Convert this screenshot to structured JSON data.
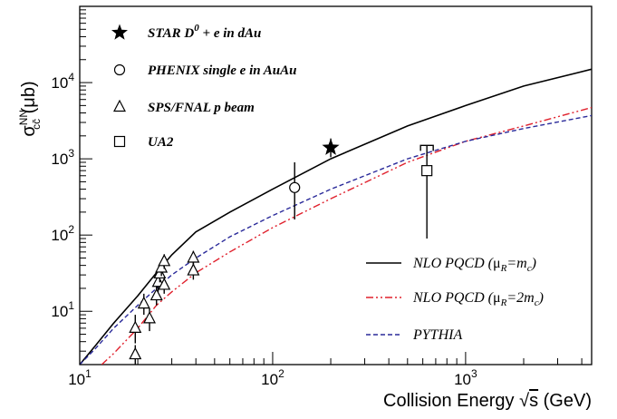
{
  "chart_data": {
    "type": "line",
    "x_scale": "log",
    "y_scale": "log",
    "xlim": [
      10,
      4500
    ],
    "ylim": [
      2,
      100000
    ],
    "xlabel_parts": {
      "before": "Collision Energy ",
      "sqrt_symbol": "√",
      "var": "s",
      "after": " (GeV)"
    },
    "ylabel_parts": {
      "sigma": "σ",
      "sup": "NN",
      "sub": "cc̄",
      "unit": " (μb)"
    },
    "x_ticks": [
      {
        "value": 10,
        "base": "10",
        "exp": "1"
      },
      {
        "value": 100,
        "base": "10",
        "exp": "2"
      },
      {
        "value": 1000,
        "base": "10",
        "exp": "3"
      }
    ],
    "y_ticks": [
      {
        "value": 10,
        "base": "10",
        "exp": "1"
      },
      {
        "value": 100,
        "base": "10",
        "exp": "2"
      },
      {
        "value": 1000,
        "base": "10",
        "exp": "3"
      },
      {
        "value": 10000,
        "base": "10",
        "exp": "4"
      }
    ],
    "grid": false,
    "legend_placement": "top-left and bottom-right",
    "curves": [
      {
        "name": "NLO PQCD (μR=mc)",
        "legend_parts": {
          "pre": "NLO PQCD (",
          "mu": "μ",
          "sub1": "R",
          "eq": "=m",
          "sub2": "c",
          "post": ")"
        },
        "style": "solid",
        "color": "#000000",
        "x": [
          10,
          12,
          15,
          20,
          25,
          30,
          40,
          60,
          100,
          200,
          500,
          1000,
          2000,
          4500
        ],
        "y": [
          2,
          3.5,
          7,
          16,
          32,
          55,
          110,
          200,
          400,
          1000,
          2700,
          5000,
          9000,
          15000
        ]
      },
      {
        "name": "NLO PQCD (μR=2mc)",
        "legend_parts": {
          "pre": "NLO PQCD (",
          "mu": "μ",
          "sub1": "R",
          "eq": "=2m",
          "sub2": "c",
          "post": ")"
        },
        "style": "dashdot",
        "color": "#e0202c",
        "x": [
          13,
          15,
          20,
          25,
          30,
          40,
          60,
          100,
          200,
          500,
          1000,
          2000,
          4500
        ],
        "y": [
          2,
          2.8,
          6,
          12,
          18,
          32,
          60,
          125,
          300,
          900,
          1700,
          2700,
          4700
        ]
      },
      {
        "name": "PYTHIA",
        "legend_parts": {
          "pre": "PYTHIA",
          "mu": "",
          "sub1": "",
          "eq": "",
          "sub2": "",
          "post": ""
        },
        "style": "dashed",
        "color": "#2a2a9a",
        "x": [
          10,
          12,
          15,
          20,
          25,
          30,
          40,
          60,
          100,
          200,
          500,
          1000,
          2000,
          4500
        ],
        "y": [
          2,
          3.2,
          6,
          12,
          20,
          30,
          50,
          95,
          180,
          400,
          1000,
          1700,
          2500,
          3700
        ]
      }
    ],
    "series": [
      {
        "name": "STAR D0 + e in dAu",
        "legend_parts": {
          "pre": "STAR D",
          "sup": "0",
          "post": " + e in dAu"
        },
        "marker": "star",
        "points": [
          {
            "x": 200,
            "y": 1400,
            "ylo": 1050,
            "yhi": 1850,
            "bracket": false
          }
        ]
      },
      {
        "name": "PHENIX single e in AuAu",
        "legend_parts": {
          "pre": "PHENIX single e in AuAu",
          "sup": "",
          "post": ""
        },
        "marker": "circle",
        "points": [
          {
            "x": 130,
            "y": 420,
            "ylo": 160,
            "yhi": 900,
            "bracket": false
          }
        ]
      },
      {
        "name": "SPS/FNAL p beam",
        "legend_parts": {
          "pre": "SPS/FNAL p beam",
          "sup": "",
          "post": ""
        },
        "marker": "triangle",
        "points": [
          {
            "x": 19.4,
            "y": 2.7,
            "ylo": 2.0,
            "yhi": 3.6,
            "bracket": false
          },
          {
            "x": 19.4,
            "y": 6.0,
            "ylo": 3.8,
            "yhi": 9.0,
            "bracket": false
          },
          {
            "x": 21.5,
            "y": 12.5,
            "ylo": 9.0,
            "yhi": 17.0,
            "bracket": false
          },
          {
            "x": 23.0,
            "y": 8.0,
            "ylo": 5.5,
            "yhi": 11.0,
            "bracket": false
          },
          {
            "x": 25.0,
            "y": 16.0,
            "ylo": 12.0,
            "yhi": 22.0,
            "bracket": false
          },
          {
            "x": 25.5,
            "y": 24.0,
            "ylo": 18.0,
            "yhi": 31.0,
            "bracket": false
          },
          {
            "x": 26.0,
            "y": 31.0,
            "ylo": 24.0,
            "yhi": 38.0,
            "bracket": false
          },
          {
            "x": 26.5,
            "y": 37.0,
            "ylo": 29.0,
            "yhi": 45.0,
            "bracket": false
          },
          {
            "x": 27.4,
            "y": 22.0,
            "ylo": 17.0,
            "yhi": 28.0,
            "bracket": false
          },
          {
            "x": 27.4,
            "y": 45.0,
            "ylo": 36.0,
            "yhi": 56.0,
            "bracket": false
          },
          {
            "x": 38.8,
            "y": 34.0,
            "ylo": 26.0,
            "yhi": 44.0,
            "bracket": false
          },
          {
            "x": 38.8,
            "y": 50.0,
            "ylo": 40.0,
            "yhi": 62.0,
            "bracket": false
          }
        ]
      },
      {
        "name": "UA2",
        "legend_parts": {
          "pre": "UA2",
          "sup": "",
          "post": ""
        },
        "marker": "square",
        "points": [
          {
            "x": 630,
            "y": 700,
            "ylo": 90,
            "yhi": 1500,
            "bracket": true
          }
        ]
      }
    ]
  }
}
